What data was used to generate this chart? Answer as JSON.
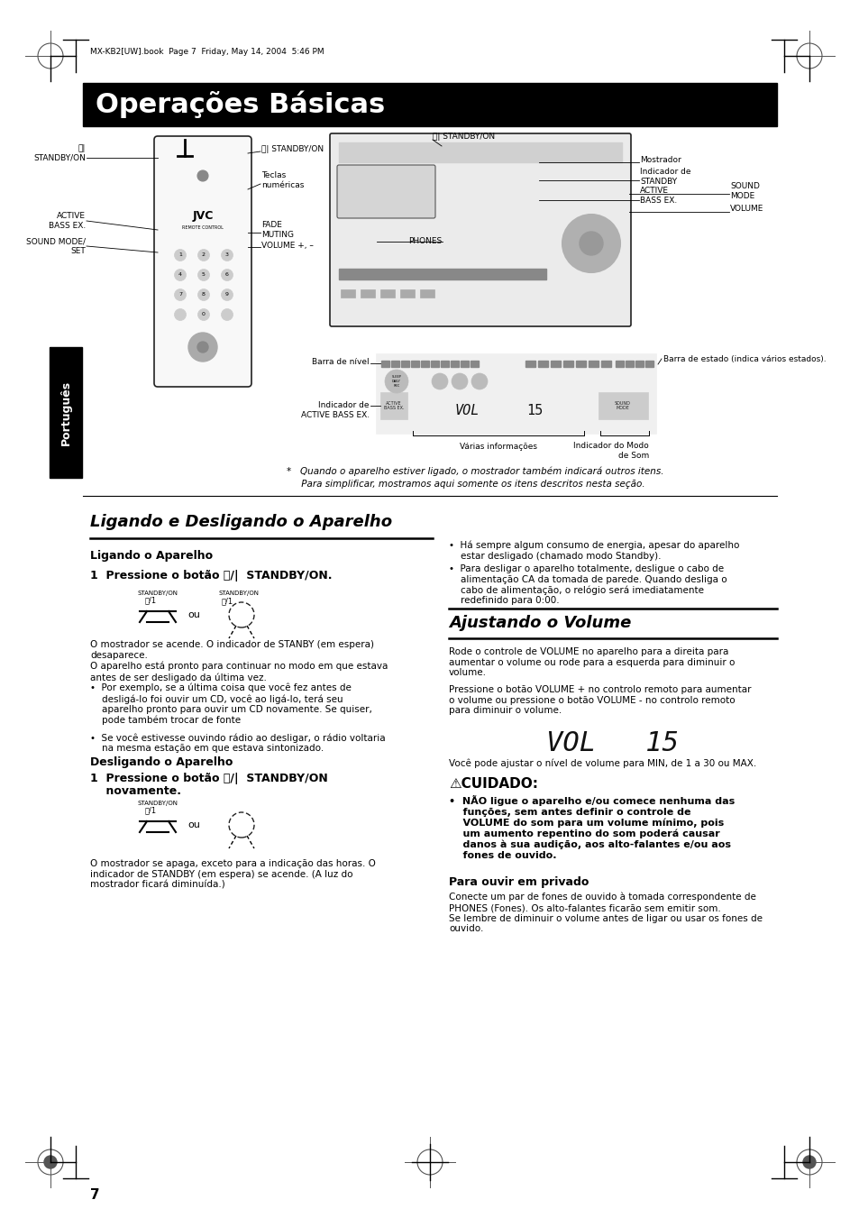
{
  "page_bg": "#ffffff",
  "header_text": "MX-KB2[UW].book  Page 7  Friday, May 14, 2004  5:46 PM",
  "title_bar_color": "#000000",
  "title_bar_text": "Operações Básicas",
  "title_bar_text_color": "#ffffff",
  "sidebar_color": "#000000",
  "sidebar_text": "Português",
  "sidebar_text_color": "#ffffff",
  "section1_title": "Ligando e Desligando o Aparelho",
  "section2_title": "Ajustando o Volume",
  "subsection1": "Ligando o Aparelho",
  "subsection2": "Desligando o Aparelho",
  "subsection3": "Para ouvir em privado",
  "step1_bold": "1  Pressione o botão ⏻/|  STANDBY/ON.",
  "step2_bold_line1": "1  Pressione o botão ⏻/|  STANDBY/ON",
  "step2_bold_line2": "    novamente.",
  "body_ligando": [
    "O mostrador se acende. O indicador de STANBY (em espera)\ndesaparece.",
    "O aparelho está pronto para continuar no modo em que estava\nantes de ser desligado da última vez.",
    "•  Por exemplo, se a última coisa que você fez antes de\n    desligá-lo foi ouvir um CD, você ao ligá-lo, terá seu\n    aparelho pronto para ouvir um CD novamente. Se quiser,\n    pode também trocar de fonte",
    "•  Se você estivesse ouvindo rádio ao desligar, o rádio voltaria\n    na mesma estação em que estava sintonizado."
  ],
  "body_desligando": "O mostrador se apaga, exceto para a indicação das horas. O\nindicador de STANDBY (em espera) se acende. (A luz do\nmostrador ficará diminuída.)",
  "col2_bullets": [
    "•  Há sempre algum consumo de energia, apesar do aparelho\n    estar desligado (chamado modo Standby).",
    "•  Para desligar o aparelho totalmente, desligue o cabo de\n    alimentação CA da tomada de parede. Quando desliga o\n    cabo de alimentação, o relógio será imediatamente\n    redefinido para 0:00."
  ],
  "volume_para1": "Rode o controle de VOLUME no aparelho para a direita para\naumentar o volume ou rode para a esquerda para diminuir o\nvolume.",
  "volume_para2": "Pressione o botão VOLUME + no controlo remoto para aumentar\no volume ou pressione o botão VOLUME - no controlo remoto\npara diminuir o volume.",
  "volume_note": "Você pode ajustar o nível de volume para MIN, de 1 a 30 ou MAX.",
  "caution_title": "⚠CUIDADO:",
  "caution_body": "•  NÃO ligue o aparelho e/ou comece nenhuma das\n    funções, sem antes definir o controle de\n    VOLUME do som para um volume mínimo, pois\n    um aumento repentino do som poderá causar\n    danos à sua audição, aos alto-falantes e/ou aos\n    fones de ouvido.",
  "privado_body": "Conecte um par de fones de ouvido à tomada correspondente de\nPHONES (Fones). Os alto-falantes ficarão sem emitir som.\nSe lembre de diminuir o volume antes de ligar ou usar os fones de\nouvido.",
  "footnote_line1": "*   Quando o aparelho estiver ligado, o mostrador também indicará outros itens.",
  "footnote_line2": "     Para simplificar, mostramos aqui somente os itens descritos nesta seção.",
  "page_number": "7"
}
